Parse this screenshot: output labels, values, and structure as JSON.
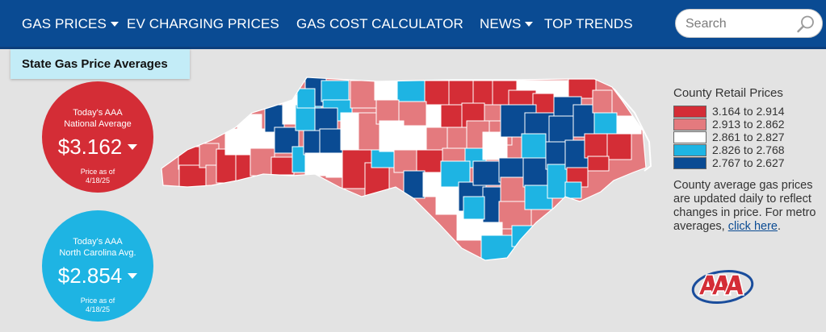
{
  "nav": {
    "gas_prices": "GAS PRICES",
    "ev_charging": "EV CHARGING PRICES",
    "calculator": "GAS COST CALCULATOR",
    "news": "NEWS",
    "trends": "TOP TRENDS",
    "search_placeholder": "Search",
    "search_icon": "magnifier-icon"
  },
  "dropdown": {
    "item": "State Gas Price Averages"
  },
  "national": {
    "title_line1": "Today's AAA",
    "title_line2": "National Average",
    "price": "$3.162",
    "asof_label": "Price as of",
    "asof_date": "4/18/25",
    "color": "#d42d36"
  },
  "state": {
    "title_line1": "Today's AAA",
    "title_line2": "North Carolina Avg.",
    "price": "$2.854",
    "asof_label": "Price as of",
    "asof_date": "4/18/25",
    "color": "#1eb4e3"
  },
  "legend": {
    "title": "County Retail Prices",
    "ranges": [
      {
        "label": "3.164 to 2.914",
        "color": "#d42d36"
      },
      {
        "label": "2.913 to 2.862",
        "color": "#e47a7e"
      },
      {
        "label": "2.861 to 2.827",
        "color": "#ffffff"
      },
      {
        "label": "2.826 to 2.768",
        "color": "#1eb4e3"
      },
      {
        "label": "2.767 to 2.627",
        "color": "#0a4b93"
      }
    ],
    "note_text": "County average gas prices are updated daily to reflect changes in price. For metro averages, ",
    "note_link": "click here",
    "note_end": "."
  },
  "map": {
    "region": "North Carolina",
    "logo": "aaa-logo"
  }
}
